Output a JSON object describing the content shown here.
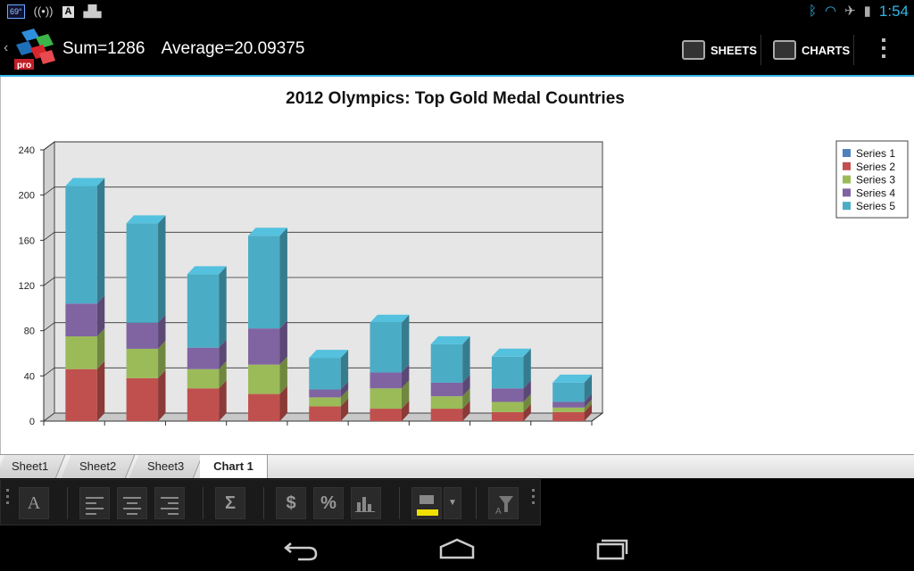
{
  "status_bar": {
    "temperature_badge": "69°",
    "time": "1:54",
    "icons": [
      "hotspot-icon",
      "font-icon",
      "android-icon",
      "bluetooth-icon",
      "wifi-icon",
      "airplane-icon",
      "battery-icon"
    ]
  },
  "action_bar": {
    "sum_text": "Sum=1286",
    "average_text": "Average=20.09375",
    "sheets_label": "SHEETS",
    "charts_label": "CHARTS",
    "logo_text": "pro"
  },
  "sheet_tabs": [
    {
      "label": "Sheet1",
      "active": false
    },
    {
      "label": "Sheet2",
      "active": false
    },
    {
      "label": "Sheet3",
      "active": false
    },
    {
      "label": "Chart 1",
      "active": true
    }
  ],
  "toolbar": {
    "sigma_label": "Σ",
    "dollar_label": "$",
    "percent_label": "%",
    "font_label": "A",
    "highlight_color": "#f0e000"
  },
  "colors": {
    "accent": "#33b5e5"
  },
  "chart_data": {
    "type": "bar",
    "stacked": true,
    "three_d": true,
    "title": "2012 Olympics: Top Gold Medal Countries",
    "xlabel": "",
    "ylabel": "",
    "ylim": [
      0,
      240
    ],
    "yticks": [
      0,
      40,
      80,
      120,
      160,
      200,
      240
    ],
    "grid": true,
    "legend": "right",
    "categories": [
      "",
      "",
      "",
      "",
      "",
      "",
      "",
      "",
      ""
    ],
    "series": [
      {
        "name": "Series 1",
        "color": "#4f81bd",
        "values": [
          0,
          0,
          0,
          0,
          0,
          0,
          0,
          0,
          0
        ]
      },
      {
        "name": "Series 2",
        "color": "#c0504d",
        "values": [
          46,
          38,
          29,
          24,
          13,
          11,
          11,
          8,
          8
        ]
      },
      {
        "name": "Series 3",
        "color": "#9bbb59",
        "values": [
          29,
          26,
          17,
          26,
          8,
          18,
          11,
          9,
          4
        ]
      },
      {
        "name": "Series 4",
        "color": "#8064a2",
        "values": [
          29,
          23,
          19,
          32,
          7,
          14,
          12,
          12,
          5
        ]
      },
      {
        "name": "Series 5",
        "color": "#4bacc6",
        "values": [
          104,
          88,
          65,
          82,
          28,
          44,
          34,
          28,
          17
        ]
      }
    ]
  }
}
